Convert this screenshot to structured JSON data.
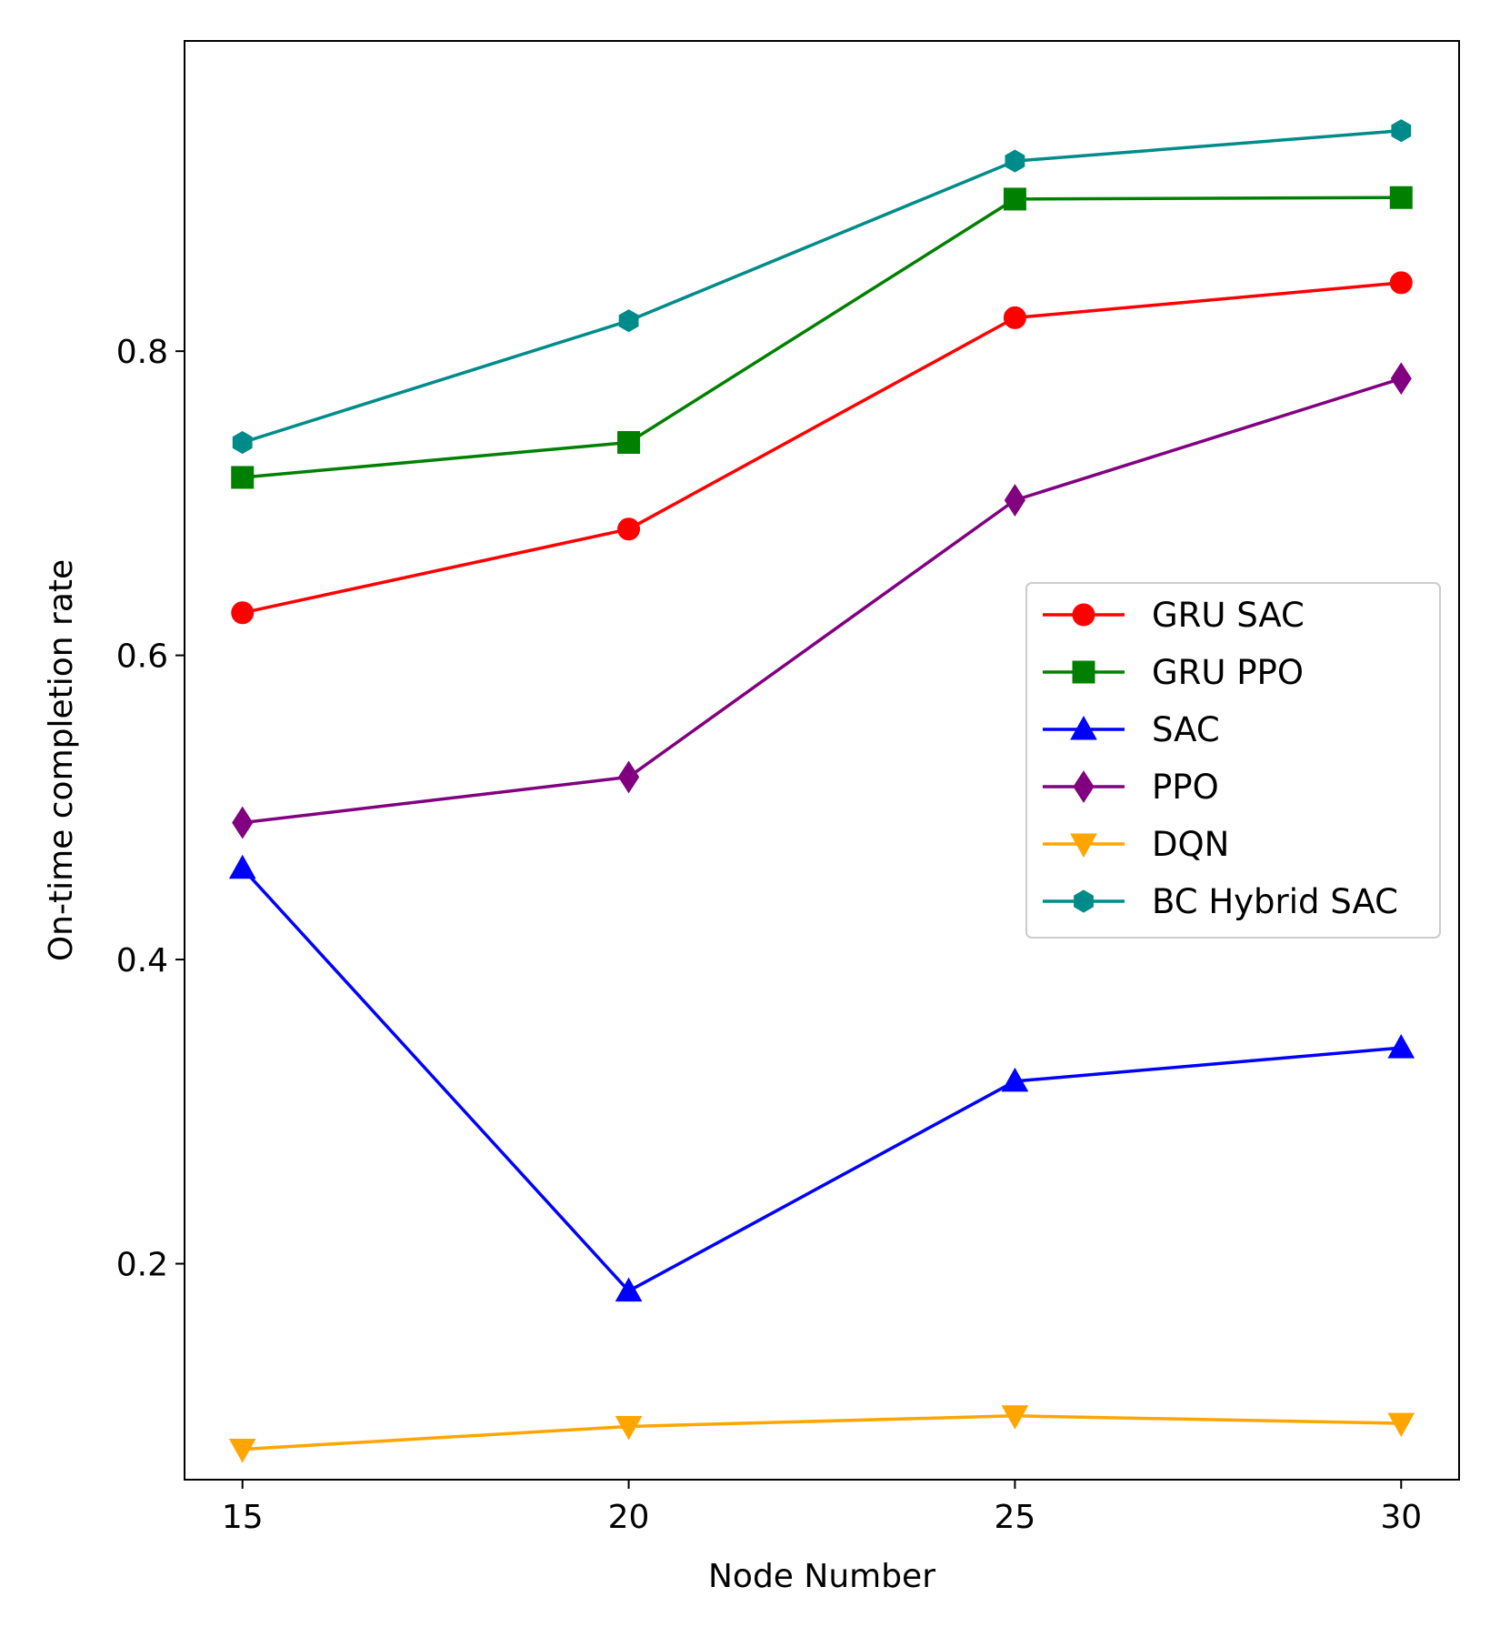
{
  "chart_data": {
    "type": "line",
    "title": "",
    "xlabel": "Node Number",
    "ylabel": "On-time completion rate",
    "x": [
      15,
      20,
      25,
      30
    ],
    "xlim": [
      14.25,
      30.75
    ],
    "ylim": [
      0.058,
      1.004
    ],
    "xticks": [
      15,
      20,
      25,
      30
    ],
    "xtick_labels": [
      "15",
      "20",
      "25",
      "30"
    ],
    "yticks": [
      0.2,
      0.4,
      0.6,
      0.8
    ],
    "ytick_labels": [
      "0.2",
      "0.4",
      "0.6",
      "0.8"
    ],
    "grid": false,
    "legend_position": "center-right",
    "series": [
      {
        "name": "GRU SAC",
        "color": "#ff0000",
        "marker": "circle",
        "values": [
          0.628,
          0.683,
          0.822,
          0.845
        ]
      },
      {
        "name": "GRU PPO",
        "color": "#008000",
        "marker": "square",
        "values": [
          0.717,
          0.74,
          0.9,
          0.901
        ]
      },
      {
        "name": "SAC",
        "color": "#0000ff",
        "marker": "triangle-up",
        "values": [
          0.46,
          0.182,
          0.32,
          0.342
        ]
      },
      {
        "name": "PPO",
        "color": "#800080",
        "marker": "diamond",
        "values": [
          0.49,
          0.52,
          0.702,
          0.782
        ]
      },
      {
        "name": "DQN",
        "color": "#ffa500",
        "marker": "triangle-down",
        "values": [
          0.078,
          0.093,
          0.1,
          0.095
        ]
      },
      {
        "name": "BC Hybrid SAC",
        "color": "#008b8b",
        "marker": "hexagon",
        "values": [
          0.74,
          0.82,
          0.925,
          0.945
        ]
      }
    ]
  }
}
